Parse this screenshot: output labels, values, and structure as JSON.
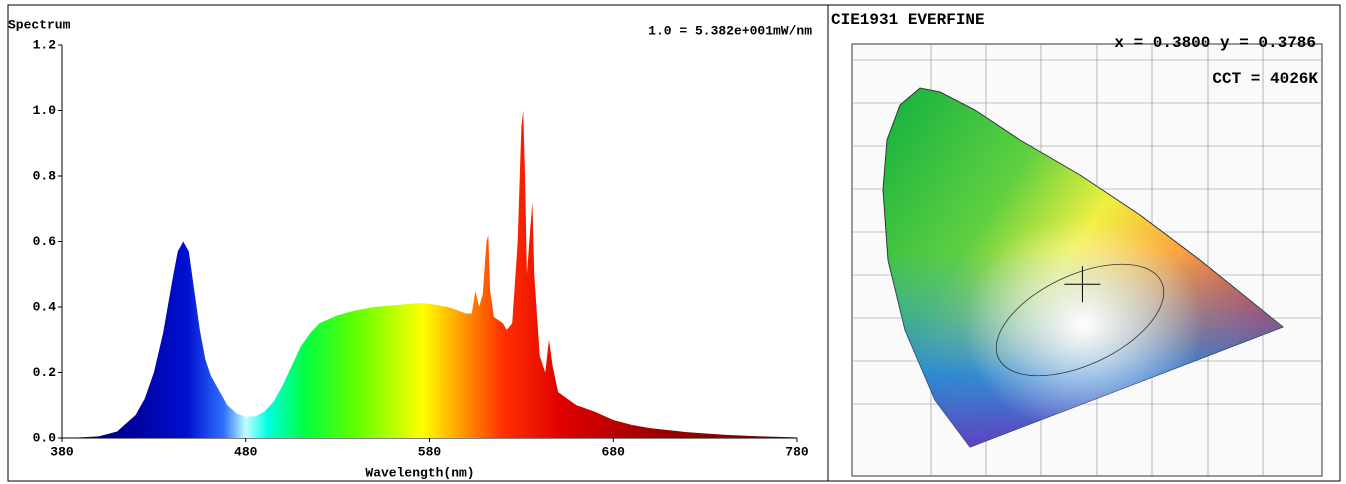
{
  "chart_data": [
    {
      "type": "area",
      "title": "Spectrum",
      "annotation": "1.0 = 5.382e+001mW/nm",
      "x_label": "Wavelength(nm)",
      "x": [
        380,
        390,
        400,
        410,
        420,
        425,
        430,
        435,
        440,
        443,
        446,
        449,
        452,
        455,
        458,
        461,
        464,
        467,
        470,
        475,
        480,
        485,
        490,
        495,
        500,
        505,
        510,
        515,
        520,
        530,
        540,
        550,
        560,
        570,
        575,
        580,
        590,
        595,
        600,
        603,
        605,
        607,
        609,
        611,
        612,
        613,
        615,
        620,
        622,
        625,
        628,
        630,
        631,
        632,
        633,
        635,
        636,
        637,
        640,
        643,
        645,
        647,
        650,
        655,
        660,
        670,
        680,
        690,
        700,
        720,
        740,
        760,
        780
      ],
      "values": [
        0.0,
        0.002,
        0.005,
        0.02,
        0.07,
        0.12,
        0.2,
        0.32,
        0.48,
        0.57,
        0.6,
        0.57,
        0.45,
        0.33,
        0.24,
        0.19,
        0.16,
        0.13,
        0.1,
        0.075,
        0.065,
        0.066,
        0.08,
        0.11,
        0.16,
        0.22,
        0.28,
        0.32,
        0.35,
        0.375,
        0.39,
        0.4,
        0.405,
        0.41,
        0.412,
        0.41,
        0.4,
        0.39,
        0.38,
        0.38,
        0.45,
        0.4,
        0.44,
        0.6,
        0.62,
        0.45,
        0.37,
        0.35,
        0.33,
        0.35,
        0.6,
        0.95,
        1.0,
        0.8,
        0.5,
        0.65,
        0.72,
        0.5,
        0.25,
        0.2,
        0.3,
        0.22,
        0.14,
        0.12,
        0.1,
        0.08,
        0.055,
        0.04,
        0.03,
        0.018,
        0.01,
        0.005,
        0.002
      ],
      "xlim": [
        380,
        780
      ],
      "xticks": [
        380,
        480,
        580,
        680,
        780
      ],
      "ylim": [
        0,
        1.2
      ],
      "yticks": [
        {
          "value": 0,
          "label": "0.0"
        },
        0.2,
        0.4,
        0.6,
        0.8,
        {
          "value": 1,
          "label": "1.0"
        },
        1.2
      ]
    },
    {
      "type": "cie",
      "title": "CIE1931  EVERFINE",
      "coordinates": "x = 0.3800 y = 0.3786",
      "cct": "CCT = 4026K",
      "point": {
        "x": 0.38,
        "y": 0.3786
      },
      "xlim": [
        0,
        0.8
      ],
      "ylim": [
        0,
        0.9
      ]
    }
  ]
}
